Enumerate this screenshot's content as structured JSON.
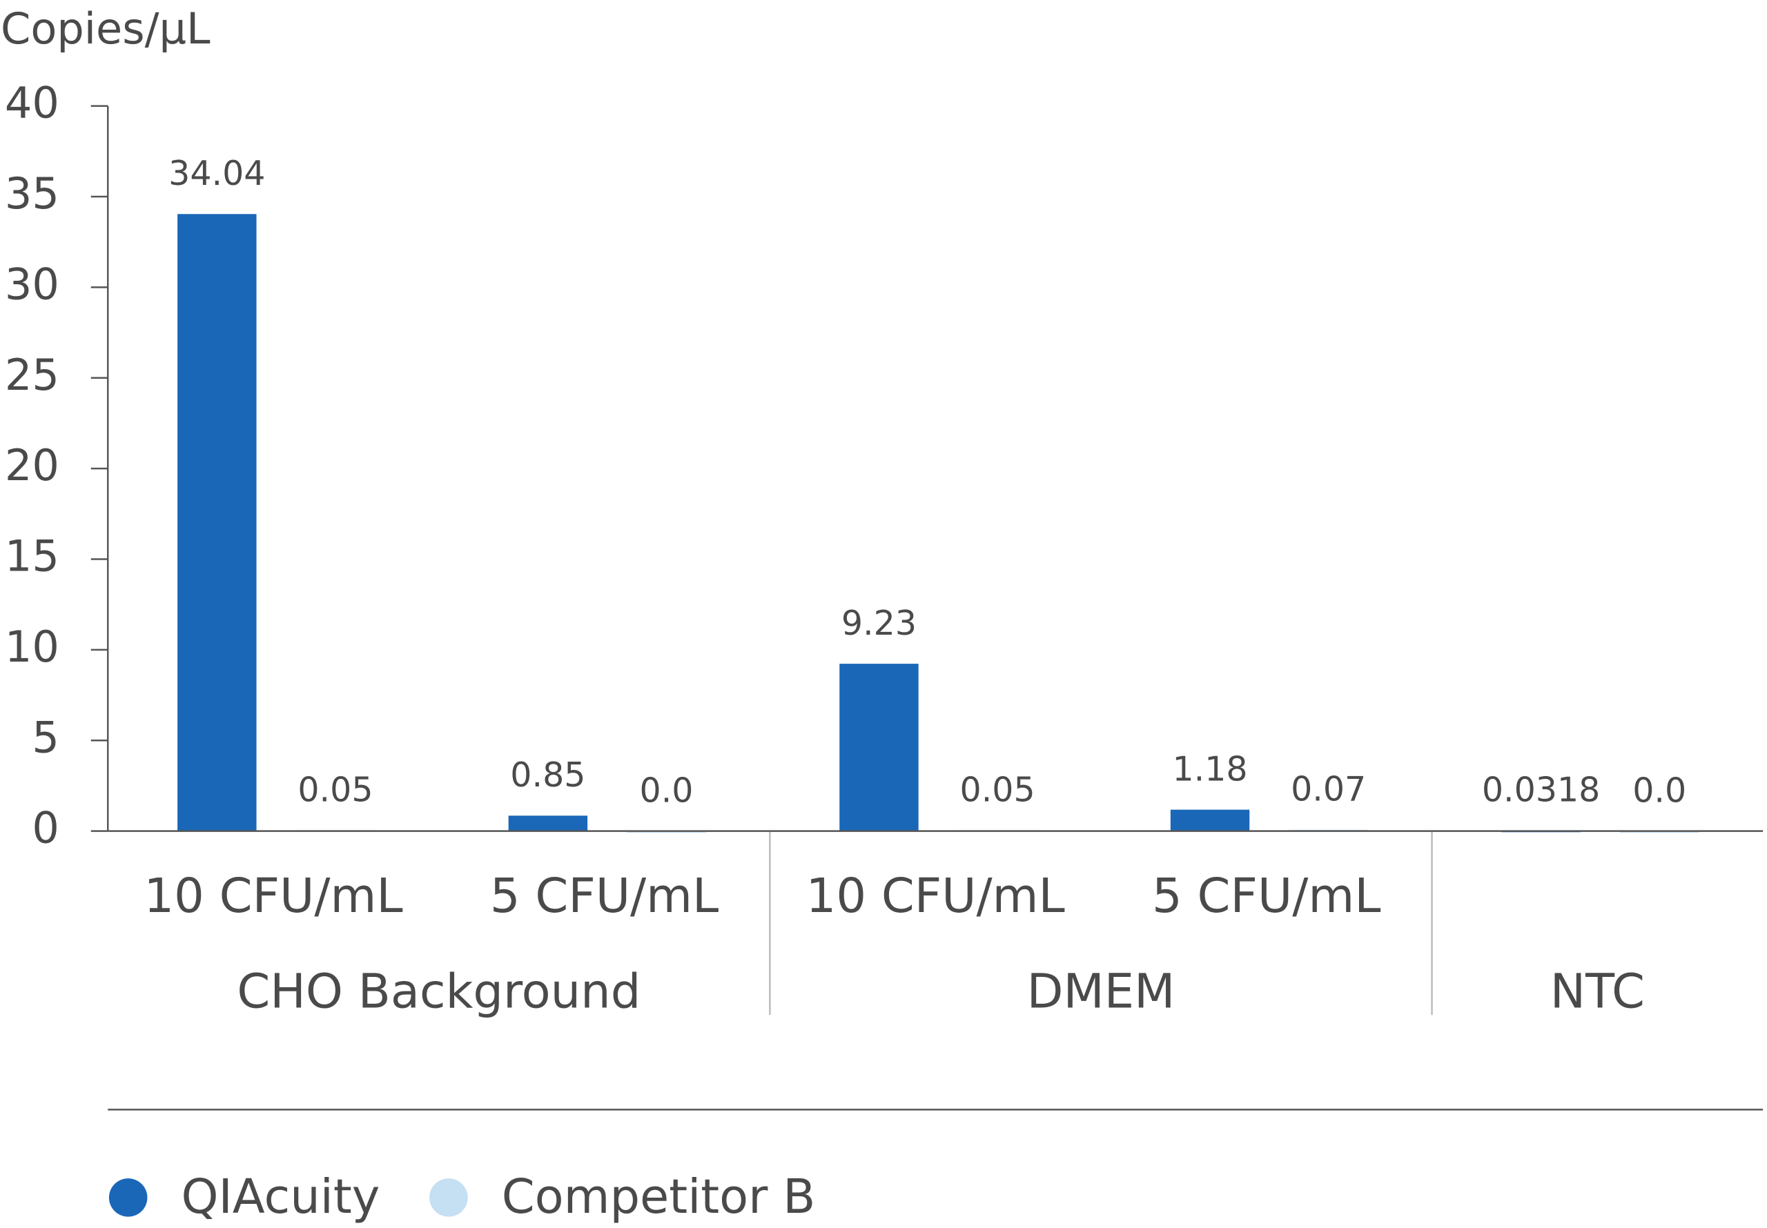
{
  "chart_data": {
    "type": "bar",
    "y_label": "Copies/μL",
    "categories": [
      "10 CFU/mL",
      "5 CFU/mL",
      "10 CFU/mL",
      "5 CFU/mL",
      null
    ],
    "groups": [
      "CHO Background",
      "CHO Background",
      "DMEM",
      "DMEM",
      "NTC"
    ],
    "series": [
      {
        "name": "QIAcuity",
        "color": "#1a67b8",
        "values": [
          34.04,
          0.85,
          9.23,
          1.18,
          0.0318
        ],
        "value_labels": [
          "34.04",
          "0.85",
          "9.23",
          "1.18",
          "0.0318"
        ]
      },
      {
        "name": "Competitor B",
        "color": "#c5dff3",
        "values": [
          0.05,
          0,
          0.05,
          0.07,
          0
        ],
        "value_labels": [
          "0.05",
          "0.0",
          "0.05",
          "0.07",
          "0.0"
        ]
      }
    ],
    "ylim": [
      0,
      40
    ],
    "yticks": [
      0,
      5,
      10,
      15,
      20,
      25,
      30,
      35,
      40
    ]
  }
}
